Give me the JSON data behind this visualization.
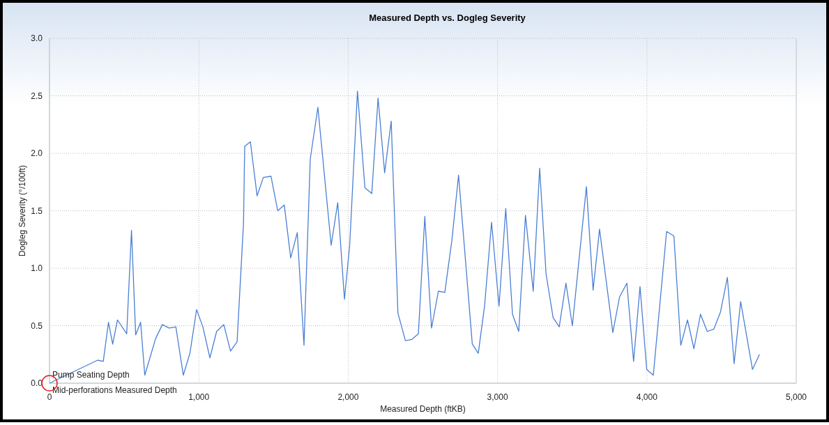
{
  "chart_data": {
    "type": "line",
    "title": "Measured Depth vs. Dogleg Severity",
    "xlabel": "Measured Depth (ftKB)",
    "ylabel": "Dogleg Severity (°/100ft)",
    "x": [
      0,
      322,
      360,
      395,
      423,
      455,
      517,
      549,
      577,
      610,
      638,
      711,
      756,
      801,
      846,
      896,
      940,
      985,
      1027,
      1074,
      1119,
      1167,
      1212,
      1256,
      1299,
      1307,
      1345,
      1390,
      1432,
      1483,
      1528,
      1572,
      1615,
      1659,
      1704,
      1746,
      1797,
      1886,
      1930,
      1975,
      2010,
      2062,
      2112,
      2158,
      2200,
      2244,
      2288,
      2333,
      2383,
      2426,
      2470,
      2513,
      2558,
      2604,
      2647,
      2694,
      2739,
      2831,
      2871,
      2913,
      2960,
      3010,
      3055,
      3100,
      3142,
      3187,
      3239,
      3282,
      3325,
      3372,
      3413,
      3458,
      3501,
      3595,
      3640,
      3683,
      3772,
      3817,
      3866,
      3911,
      3954,
      3999,
      4043,
      4132,
      4181,
      4227,
      4272,
      4315,
      4359,
      4404,
      4448,
      4493,
      4539,
      4584,
      4628,
      4707,
      4754
    ],
    "series": [
      {
        "color": "#4a7fd4",
        "values": [
          0,
          0.2,
          0.19,
          0.53,
          0.34,
          0.55,
          0.43,
          1.33,
          0.42,
          0.53,
          0.07,
          0.39,
          0.51,
          0.48,
          0.49,
          0.07,
          0.26,
          0.64,
          0.49,
          0.22,
          0.45,
          0.51,
          0.28,
          0.36,
          1.39,
          2.06,
          2.1,
          1.63,
          1.79,
          1.8,
          1.5,
          1.55,
          1.09,
          1.31,
          0.33,
          1.95,
          2.4,
          1.2,
          1.57,
          0.73,
          1.2,
          2.54,
          1.7,
          1.65,
          2.48,
          1.83,
          2.28,
          0.61,
          0.37,
          0.38,
          0.43,
          1.45,
          0.48,
          0.8,
          0.79,
          1.24,
          1.81,
          0.34,
          0.26,
          0.67,
          1.4,
          0.67,
          1.52,
          0.6,
          0.45,
          1.46,
          0.8,
          1.87,
          0.95,
          0.57,
          0.49,
          0.87,
          0.5,
          1.71,
          0.81,
          1.34,
          0.44,
          0.75,
          0.87,
          0.19,
          0.84,
          0.12,
          0.07,
          1.32,
          1.28,
          0.33,
          0.55,
          0.3,
          0.6,
          0.45,
          0.47,
          0.62,
          0.92,
          0.17,
          0.71,
          0.12,
          0.25
        ]
      }
    ],
    "xlim": [
      0,
      5000
    ],
    "xticks": [
      {
        "value": 0,
        "label": "0"
      },
      {
        "value": 1000,
        "label": "1,000"
      },
      {
        "value": 2000,
        "label": "2,000"
      },
      {
        "value": 3000,
        "label": "3,000"
      },
      {
        "value": 4000,
        "label": "4,000"
      },
      {
        "value": 5000,
        "label": "5,000"
      }
    ],
    "ylim": [
      0,
      3
    ],
    "yticks": [
      {
        "value": 0,
        "label": "0.0"
      },
      {
        "value": 0.5,
        "label": "0.5"
      },
      {
        "value": 1,
        "label": "1.0"
      },
      {
        "value": 1.5,
        "label": "1.5"
      },
      {
        "value": 2,
        "label": "2.0"
      },
      {
        "value": 2.5,
        "label": "2.5"
      },
      {
        "value": 3,
        "label": "3.0"
      }
    ],
    "grid": true,
    "marker": "none",
    "line_style": "solid",
    "annotations": [
      {
        "text": "Pump Seating Depth",
        "x": 0,
        "y": 0
      },
      {
        "text": "Mid-perforations Measured Depth",
        "x": 0,
        "y": 0
      }
    ]
  }
}
